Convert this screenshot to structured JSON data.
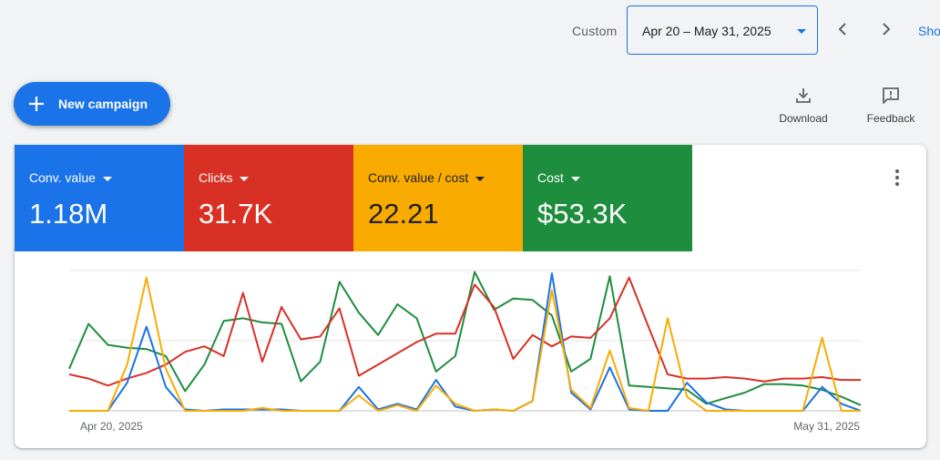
{
  "toolbar": {
    "custom_label": "Custom",
    "date_range": "Apr 20 – May 31, 2025",
    "show_label": "Show"
  },
  "actions": {
    "new_campaign": "New campaign",
    "download": "Download",
    "feedback": "Feedback"
  },
  "metrics": [
    {
      "name": "Conv. value",
      "value": "1.18M",
      "color": "#1a73e8",
      "text_color": "#ffffff"
    },
    {
      "name": "Clicks",
      "value": "31.7K",
      "color": "#d93025",
      "text_color": "#ffffff"
    },
    {
      "name": "Conv. value / cost",
      "value": "22.21",
      "color": "#f9ab00",
      "text_color": "#202124"
    },
    {
      "name": "Cost",
      "value": "$53.3K",
      "color": "#1e8e3e",
      "text_color": "#ffffff"
    }
  ],
  "chart_data": {
    "type": "line",
    "x": [
      "Apr 20",
      "Apr 21",
      "Apr 22",
      "Apr 23",
      "Apr 24",
      "Apr 25",
      "Apr 26",
      "Apr 27",
      "Apr 28",
      "Apr 29",
      "Apr 30",
      "May 1",
      "May 2",
      "May 3",
      "May 4",
      "May 5",
      "May 6",
      "May 7",
      "May 8",
      "May 9",
      "May 10",
      "May 11",
      "May 12",
      "May 13",
      "May 14",
      "May 15",
      "May 16",
      "May 17",
      "May 18",
      "May 19",
      "May 20",
      "May 21",
      "May 22",
      "May 23",
      "May 24",
      "May 25",
      "May 26",
      "May 27",
      "May 28",
      "May 29",
      "May 30",
      "May 31"
    ],
    "x_tick_labels": {
      "first": "Apr 20, 2025",
      "last": "May 31, 2025"
    },
    "ylim": [
      0,
      1
    ],
    "gridlines": 3,
    "series": [
      {
        "color": "#1a73e8",
        "values": [
          0.0,
          0.0,
          0.0,
          0.2,
          0.6,
          0.17,
          0.01,
          0.0,
          0.01,
          0.01,
          0.01,
          0.01,
          0.0,
          0.0,
          0.0,
          0.17,
          0.01,
          0.05,
          0.01,
          0.22,
          0.03,
          0.0,
          0.01,
          0.0,
          0.07,
          0.98,
          0.13,
          0.01,
          0.31,
          0.01,
          0.0,
          0.0,
          0.2,
          0.06,
          0.01,
          0.0,
          0.0,
          0.0,
          0.0,
          0.17,
          0.05,
          0.0
        ]
      },
      {
        "color": "#d93025",
        "values": [
          0.26,
          0.23,
          0.18,
          0.23,
          0.27,
          0.33,
          0.42,
          0.46,
          0.39,
          0.84,
          0.35,
          0.74,
          0.51,
          0.53,
          0.73,
          0.25,
          0.33,
          0.41,
          0.49,
          0.55,
          0.55,
          0.9,
          0.74,
          0.37,
          0.54,
          0.46,
          0.53,
          0.52,
          0.66,
          0.95,
          0.6,
          0.26,
          0.23,
          0.23,
          0.24,
          0.23,
          0.21,
          0.23,
          0.23,
          0.24,
          0.22,
          0.22
        ]
      },
      {
        "color": "#f9ab00",
        "values": [
          0.0,
          0.0,
          0.0,
          0.33,
          0.95,
          0.3,
          0.0,
          0.0,
          0.0,
          0.0,
          0.02,
          0.0,
          0.0,
          0.0,
          0.0,
          0.11,
          0.0,
          0.04,
          0.0,
          0.18,
          0.05,
          0.0,
          0.01,
          0.0,
          0.07,
          0.86,
          0.15,
          0.02,
          0.43,
          0.02,
          0.0,
          0.66,
          0.1,
          0.0,
          0.0,
          0.0,
          0.0,
          0.0,
          0.0,
          0.52,
          0.0,
          0.0
        ]
      },
      {
        "color": "#1e8e3e",
        "values": [
          0.3,
          0.62,
          0.47,
          0.45,
          0.44,
          0.39,
          0.14,
          0.33,
          0.64,
          0.66,
          0.63,
          0.62,
          0.21,
          0.35,
          0.92,
          0.7,
          0.54,
          0.76,
          0.66,
          0.28,
          0.39,
          0.99,
          0.72,
          0.8,
          0.79,
          0.68,
          0.28,
          0.37,
          0.96,
          0.18,
          0.17,
          0.16,
          0.15,
          0.05,
          0.09,
          0.13,
          0.19,
          0.19,
          0.18,
          0.15,
          0.1,
          0.04
        ]
      }
    ]
  }
}
